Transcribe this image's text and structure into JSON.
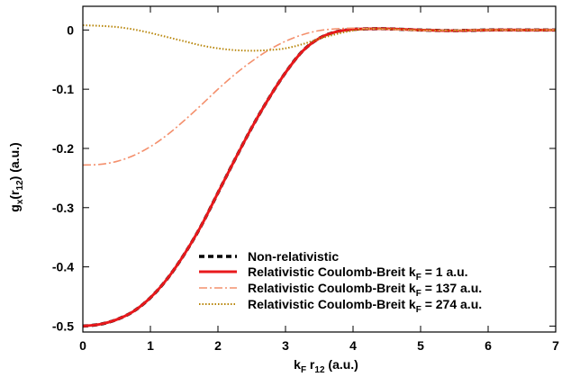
{
  "chart_data": {
    "type": "line",
    "title": "",
    "xlabel": {
      "main": "k",
      "sub1": "F",
      "mid": " r",
      "sub2": "12",
      "tail": " (a.u.)"
    },
    "ylabel": {
      "main": "g",
      "sub1": "x",
      "mid": "(r",
      "sub2": "12",
      "tail": ") (a.u.)"
    },
    "xlim": [
      0,
      7
    ],
    "ylim": [
      -0.51,
      0.04
    ],
    "xticks": [
      0,
      1,
      2,
      3,
      4,
      5,
      6,
      7
    ],
    "xtick_labels": [
      "0",
      "1",
      "2",
      "3",
      "4",
      "5",
      "6",
      "7"
    ],
    "yticks": [
      0,
      -0.1,
      -0.2,
      -0.3,
      -0.4,
      -0.5
    ],
    "ytick_labels": [
      "0",
      "-0.1",
      "-0.2",
      "-0.3",
      "-0.4",
      "-0.5"
    ],
    "grid": false,
    "legend_position": "bottom-right",
    "series": [
      {
        "name": "Non-relativistic",
        "color": "#000000",
        "style": "dashed",
        "x": [
          0,
          0.25,
          0.5,
          0.75,
          1.0,
          1.25,
          1.5,
          1.75,
          2.0,
          2.25,
          2.5,
          2.75,
          3.0,
          3.25,
          3.5,
          3.75,
          4.0,
          4.25,
          4.5,
          4.75,
          5.0,
          5.5,
          6.0,
          6.5,
          7.0
        ],
        "y": [
          -0.5,
          -0.497,
          -0.489,
          -0.475,
          -0.452,
          -0.42,
          -0.379,
          -0.331,
          -0.275,
          -0.219,
          -0.165,
          -0.116,
          -0.072,
          -0.036,
          -0.014,
          -0.003,
          0.001,
          0.002,
          0.002,
          0.001,
          0.0,
          -0.001,
          0.0,
          0.0,
          0.0
        ]
      },
      {
        "name": "Relativistic Coulomb-Breit k_F = 1 a.u.",
        "label": {
          "main": "Relativistic Coulomb-Breit k",
          "sub": "F",
          "tail": " = 1 a.u."
        },
        "color": "#e8191c",
        "style": "solid",
        "x": [
          0,
          0.25,
          0.5,
          0.75,
          1.0,
          1.25,
          1.5,
          1.75,
          2.0,
          2.25,
          2.5,
          2.75,
          3.0,
          3.25,
          3.5,
          3.75,
          4.0,
          4.25,
          4.5,
          4.75,
          5.0,
          5.5,
          6.0,
          6.5,
          7.0
        ],
        "y": [
          -0.5,
          -0.497,
          -0.489,
          -0.475,
          -0.452,
          -0.42,
          -0.379,
          -0.331,
          -0.275,
          -0.219,
          -0.165,
          -0.116,
          -0.072,
          -0.036,
          -0.014,
          -0.003,
          0.001,
          0.002,
          0.002,
          0.001,
          0.0,
          -0.001,
          0.0,
          0.0,
          0.0
        ]
      },
      {
        "name": "Relativistic Coulomb-Breit k_F = 137 a.u.",
        "label": {
          "main": "Relativistic Coulomb-Breit k",
          "sub": "F",
          "tail": " = 137 a.u."
        },
        "color": "#f4906d",
        "style": "dashdot",
        "x": [
          0,
          0.25,
          0.5,
          0.75,
          1.0,
          1.25,
          1.5,
          1.75,
          2.0,
          2.25,
          2.5,
          2.75,
          3.0,
          3.25,
          3.5,
          3.75,
          4.0,
          4.25,
          4.5,
          4.75,
          5.0,
          5.5,
          6.0,
          6.5,
          7.0
        ],
        "y": [
          -0.228,
          -0.227,
          -0.222,
          -0.212,
          -0.197,
          -0.177,
          -0.153,
          -0.127,
          -0.1,
          -0.075,
          -0.053,
          -0.034,
          -0.019,
          -0.008,
          -0.001,
          0.002,
          0.003,
          0.002,
          0.001,
          0.0,
          -0.001,
          0.0,
          0.0,
          0.0,
          0.0
        ]
      },
      {
        "name": "Relativistic Coulomb-Breit k_F = 274 a.u.",
        "label": {
          "main": "Relativistic Coulomb-Breit k",
          "sub": "F",
          "tail": " = 274 a.u."
        },
        "color": "#b8860b",
        "style": "dotted",
        "x": [
          0,
          0.25,
          0.5,
          0.75,
          1.0,
          1.25,
          1.5,
          1.75,
          2.0,
          2.25,
          2.5,
          2.75,
          3.0,
          3.25,
          3.5,
          3.75,
          4.0,
          4.25,
          4.5,
          4.75,
          5.0,
          5.5,
          6.0,
          6.5,
          7.0
        ],
        "y": [
          0.008,
          0.007,
          0.005,
          0.001,
          -0.005,
          -0.012,
          -0.019,
          -0.026,
          -0.031,
          -0.034,
          -0.035,
          -0.034,
          -0.031,
          -0.024,
          -0.015,
          -0.007,
          -0.001,
          0.002,
          0.002,
          0.001,
          0.0,
          -0.001,
          0.0,
          0.0,
          0.0
        ]
      }
    ]
  }
}
